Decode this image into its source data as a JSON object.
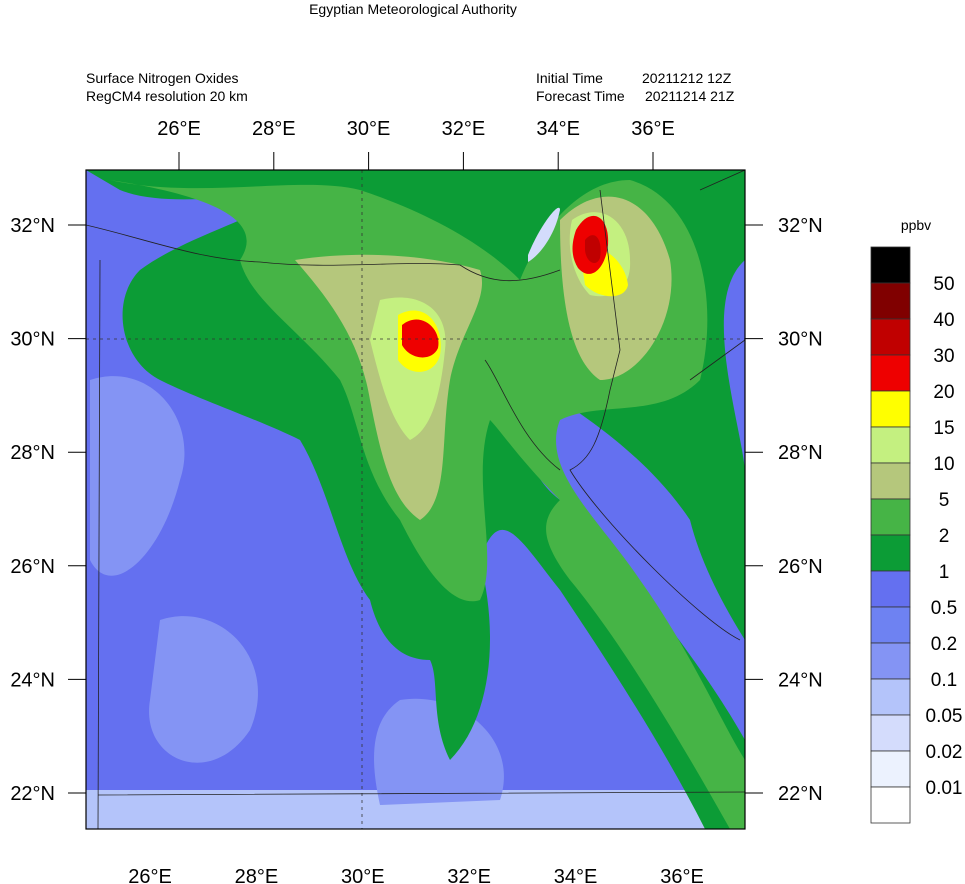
{
  "header": {
    "title": "Egyptian Meteorological Authority",
    "left_lines": [
      "Surface Nitrogen Oxides",
      "RegCM4   resolution 20 km"
    ],
    "right_lines": [
      {
        "label": "Initial Time",
        "value": "20211212 12Z"
      },
      {
        "label": "Forecast Time",
        "value": "20211214 21Z"
      }
    ]
  },
  "map": {
    "top_labels": [
      "26°E",
      "28°E",
      "30°E",
      "32°E",
      "34°E",
      "36°E"
    ],
    "bottom_labels": [
      "26°E",
      "28°E",
      "30°E",
      "32°E",
      "34°E",
      "36°E"
    ],
    "left_labels": [
      "32°N",
      "30°N",
      "28°N",
      "26°N",
      "24°N",
      "22°N"
    ],
    "right_labels": [
      "32°N",
      "30°N",
      "28°N",
      "26°N",
      "24°N",
      "22°N"
    ]
  },
  "colorbar": {
    "unit": "ppbv",
    "labels": [
      "50",
      "40",
      "30",
      "20",
      "15",
      "10",
      "5",
      "2",
      "1",
      "0.5",
      "0.2",
      "0.1",
      "0.05",
      "0.02",
      "0.01"
    ],
    "colors": [
      "#000000",
      "#800000",
      "#c00000",
      "#ee0000",
      "#ffff00",
      "#c4f080",
      "#b5c77c",
      "#46b446",
      "#0c9c36",
      "#6470f0",
      "#6e82f2",
      "#8494f4",
      "#b4c4fa",
      "#d4dcfc",
      "#ecf2fe",
      "#ffffff"
    ]
  }
}
